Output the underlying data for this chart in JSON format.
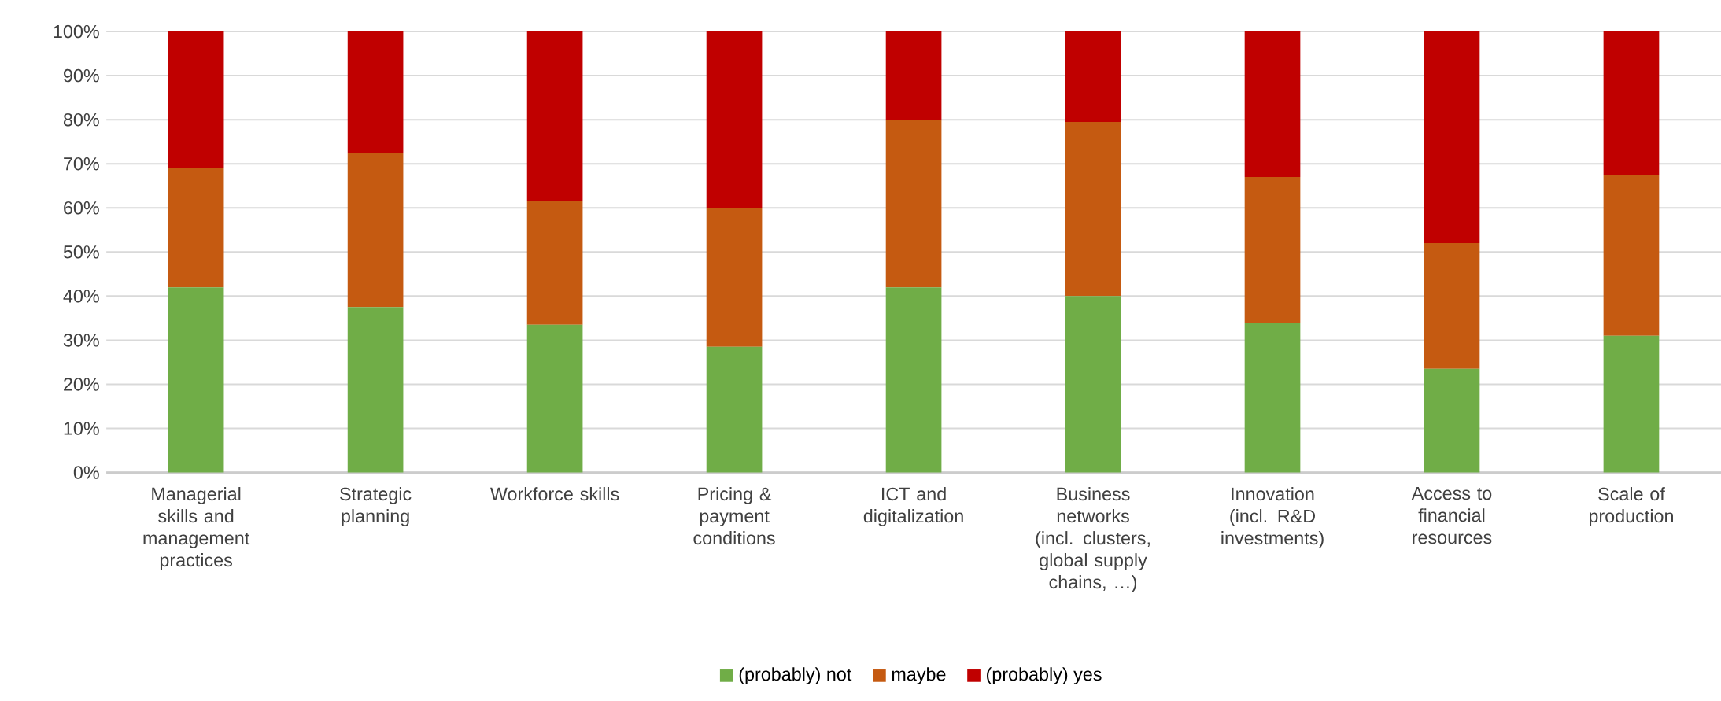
{
  "chart_data": {
    "type": "bar",
    "stacked": true,
    "categories": [
      "Managerial skills and management practices",
      "Strategic planning",
      "Workforce skills",
      "Pricing & payment conditions",
      "ICT and digitalization",
      "Business networks (incl. clusters, global supply chains, …)",
      "Innovation (incl. R&D investments)",
      "Access to financial resources",
      "Scale of production"
    ],
    "series": [
      {
        "name": "(probably) not",
        "color": "#70ad47",
        "values": [
          42,
          37.5,
          33.5,
          28.5,
          42,
          40,
          34,
          23.5,
          31
        ]
      },
      {
        "name": "maybe",
        "color": "#c55a11",
        "values": [
          27,
          35,
          28,
          31.5,
          38,
          39.5,
          33,
          28.5,
          36.5
        ]
      },
      {
        "name": "(probably) yes",
        "color": "#c00000",
        "values": [
          31,
          27.5,
          38.5,
          40,
          20,
          20.5,
          33,
          48,
          32.5
        ]
      }
    ],
    "ylim": [
      0,
      100
    ],
    "yticks": [
      {
        "value": 0,
        "label": "0%"
      },
      {
        "value": 10,
        "label": "10%"
      },
      {
        "value": 20,
        "label": "20%"
      },
      {
        "value": 30,
        "label": "30%"
      },
      {
        "value": 40,
        "label": "40%"
      },
      {
        "value": 50,
        "label": "50%"
      },
      {
        "value": 60,
        "label": "60%"
      },
      {
        "value": 70,
        "label": "70%"
      },
      {
        "value": 80,
        "label": "80%"
      },
      {
        "value": 90,
        "label": "90%"
      },
      {
        "value": 100,
        "label": "100%"
      }
    ],
    "grid": "y",
    "legend": "bottom"
  }
}
